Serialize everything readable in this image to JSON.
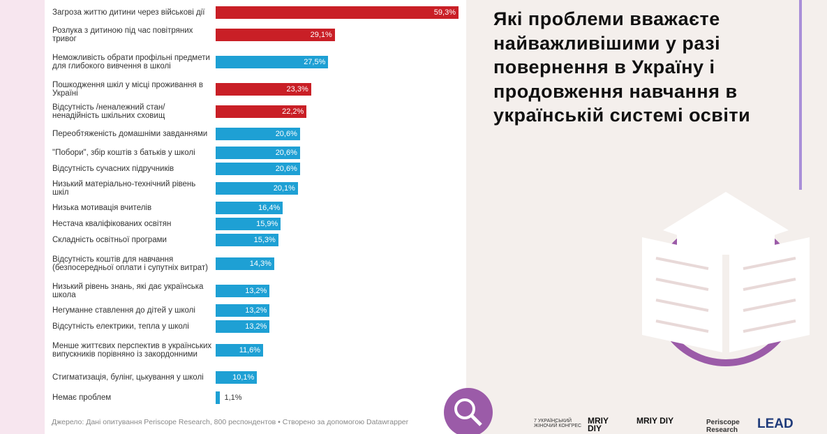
{
  "chart_data": {
    "type": "bar",
    "orientation": "horizontal",
    "title": "Які проблеми вважаєте найважливішими у разі повернення в Україну і продовження навчання в українській системі освіти",
    "categories": [
      "Загроза життю дитини через військові дії",
      "Розлука з дитиною під час повітряних тривог",
      "Неможливість обрати профільні предмети для глибокого вивчення в школі",
      "Пошкодження шкіл у місці проживання в Україні",
      "Відсутність /неналежний стан/ ненадійність шкільних сховищ",
      "Переобтяженість домашніми завданнями",
      "\"Побори\", збір коштів з батьків у школі",
      "Відсутність сучасних підручників",
      "Низький матеріально-технічний рівень шкіл",
      "Низька мотивація вчителів",
      "Нестача кваліфікованих освітян",
      "Складність освітньої програми",
      "Відсутність коштів для навчання (безпосередньої оплати і супутніх витрат)",
      "Низький рівень знань, які дає українська школа",
      "Негуманне ставлення до дітей у школі",
      "Відсутність електрики, тепла у школі",
      "Менше життєвих перспектив в українських випускників порівняно із закордонними",
      "Стигматизація, булінг, цькування у школі",
      "Немає проблем"
    ],
    "values": [
      59.3,
      29.1,
      27.5,
      23.3,
      22.2,
      20.6,
      20.6,
      20.6,
      20.1,
      16.4,
      15.9,
      15.3,
      14.3,
      13.2,
      13.2,
      13.2,
      11.6,
      10.1,
      1.1
    ],
    "value_labels": [
      "59,3%",
      "29,1%",
      "27,5%",
      "23,3%",
      "22,2%",
      "20,6%",
      "20,6%",
      "20,6%",
      "20,1%",
      "16,4%",
      "15,9%",
      "15,3%",
      "14,3%",
      "13,2%",
      "13,2%",
      "13,2%",
      "11,6%",
      "10,1%",
      "1,1%"
    ],
    "colors": [
      "#c91f26",
      "#c91f26",
      "#1ea0d4",
      "#c91f26",
      "#c91f26",
      "#1ea0d4",
      "#1ea0d4",
      "#1ea0d4",
      "#1ea0d4",
      "#1ea0d4",
      "#1ea0d4",
      "#1ea0d4",
      "#1ea0d4",
      "#1ea0d4",
      "#1ea0d4",
      "#1ea0d4",
      "#1ea0d4",
      "#1ea0d4",
      "#1ea0d4"
    ],
    "source": "Джерело: Дані опитування Periscope Research, 800 респондентов • Створено за допомогою Datawrapper"
  },
  "logos": [
    "7 УКРАЇНСЬКИЙ ЖІНОЧИЙ КОНГРЕС",
    "MRIY DIY",
    "MRIY DIY",
    "Periscope Research",
    "LEAD"
  ]
}
